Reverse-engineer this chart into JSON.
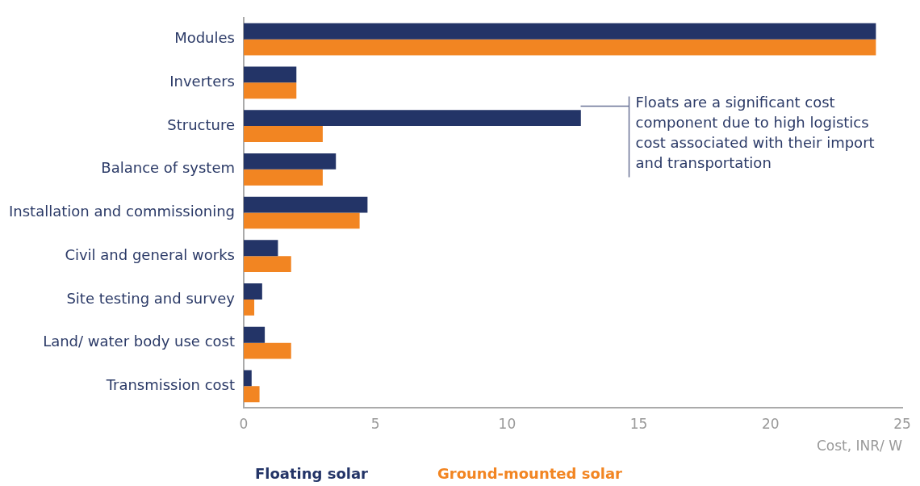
{
  "chart_data": {
    "type": "bar",
    "orientation": "horizontal",
    "xlabel": "Cost, INR/ W",
    "categories": [
      "Modules",
      "Inverters",
      "Structure",
      "Balance of system",
      "Installation and commissioning",
      "Civil and general works",
      "Site testing and survey",
      "Land/ water body use cost",
      "Transmission cost"
    ],
    "series": [
      {
        "name": "Floating solar",
        "color": "#233467",
        "values": [
          24.0,
          2.0,
          12.8,
          3.5,
          4.7,
          1.3,
          0.7,
          0.8,
          0.3
        ]
      },
      {
        "name": "Ground-mounted solar",
        "color": "#f28522",
        "values": [
          24.0,
          2.0,
          3.0,
          3.0,
          4.4,
          1.8,
          0.4,
          1.8,
          0.6
        ]
      }
    ],
    "xlim": [
      0,
      25
    ],
    "xticks": [
      0,
      5,
      10,
      15,
      20,
      25
    ],
    "legend": "bottom",
    "annotations": [
      "Floats are a significant cost component due to high logistics cost associated with their import and transportation"
    ]
  }
}
